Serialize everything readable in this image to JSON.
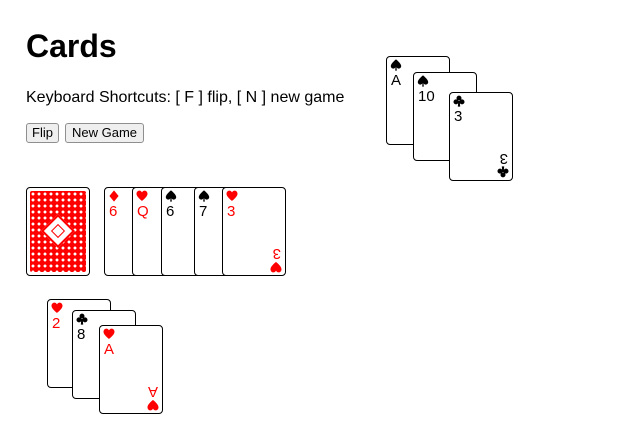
{
  "title": "Cards",
  "shortcuts_text": "Keyboard Shortcuts: [ F ] flip, [ N ] new game",
  "buttons": {
    "flip": "Flip",
    "new_game": "New Game"
  },
  "colors": {
    "red_suit": "#ff0000",
    "black_suit": "#000000",
    "card_back": "#ff0000"
  },
  "deck": {
    "face_down": true
  },
  "upper_fan": [
    {
      "rank": "A",
      "suit": "spades"
    },
    {
      "rank": "10",
      "suit": "spades"
    },
    {
      "rank": "3",
      "suit": "clubs"
    }
  ],
  "middle_row": [
    {
      "rank": "6",
      "suit": "diamonds"
    },
    {
      "rank": "Q",
      "suit": "hearts"
    },
    {
      "rank": "6",
      "suit": "spades"
    },
    {
      "rank": "7",
      "suit": "spades"
    },
    {
      "rank": "3",
      "suit": "hearts"
    }
  ],
  "lower_fan": [
    {
      "rank": "2",
      "suit": "hearts"
    },
    {
      "rank": "8",
      "suit": "clubs"
    },
    {
      "rank": "A",
      "suit": "hearts"
    }
  ]
}
